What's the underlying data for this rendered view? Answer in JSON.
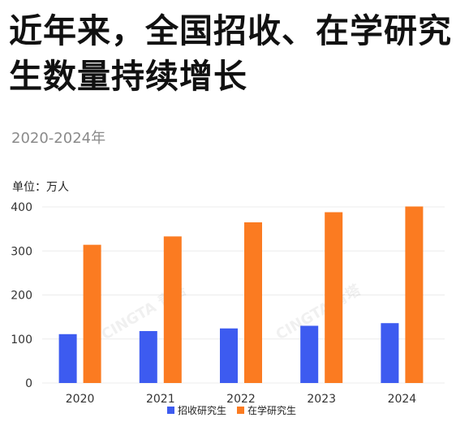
{
  "header": {
    "title": "近年来，全国招收、在学研究生数量持续增长",
    "subtitle": "2020-2024年",
    "unit_label": "单位：万人"
  },
  "watermark": "CINGTA 青塔",
  "colors": {
    "series_1": "#3d5bf0",
    "series_2": "#fb7b21",
    "grid": "#ececec",
    "axis_text": "#333333"
  },
  "chart_data": {
    "type": "bar",
    "categories": [
      "2020",
      "2021",
      "2022",
      "2023",
      "2024"
    ],
    "series": [
      {
        "name": "招收研究生",
        "values": [
          111,
          118,
          124,
          130,
          136
        ]
      },
      {
        "name": "在学研究生",
        "values": [
          314,
          333,
          365,
          388,
          401
        ]
      }
    ],
    "ylim": [
      0,
      400
    ],
    "yticks": [
      "0",
      "100",
      "200",
      "300",
      "400"
    ],
    "grid": true,
    "legend": "bottom-center"
  }
}
